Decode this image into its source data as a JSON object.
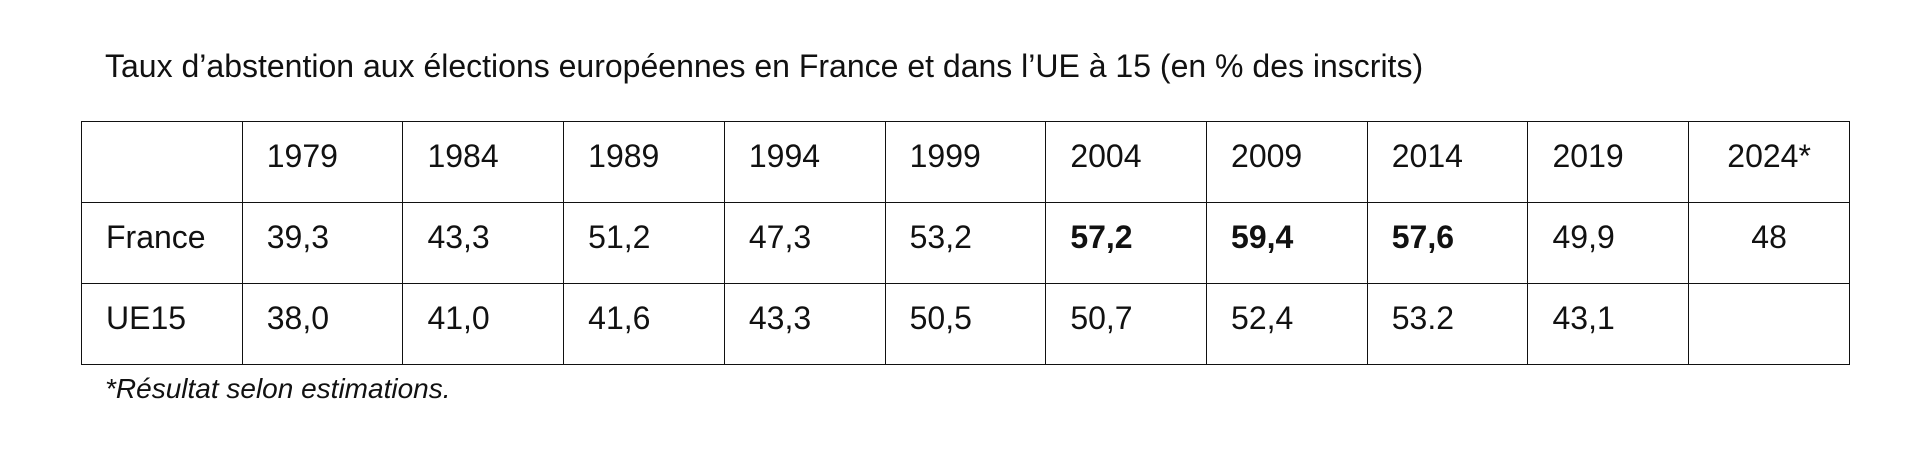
{
  "title": "Taux d’abstention aux élections européennes en France et dans l’UE à 15 (en % des inscrits)",
  "table": {
    "header": [
      "1979",
      "1984",
      "1989",
      "1994",
      "1999",
      "2004",
      "2009",
      "2014",
      "2019",
      "2024*"
    ],
    "rows": [
      [
        "France",
        "39,3",
        "43,3",
        "51,2",
        "47,3",
        "53,2",
        "57,2",
        "59,4",
        "57,6",
        "49,9",
        "48"
      ],
      [
        "UE15",
        "38,0",
        "41,0",
        "41,6",
        "43,3",
        "50,5",
        "50,7",
        "52,4",
        "53.2",
        "43,1"
      ]
    ]
  },
  "footnote": "*Résultat selon estimations."
}
